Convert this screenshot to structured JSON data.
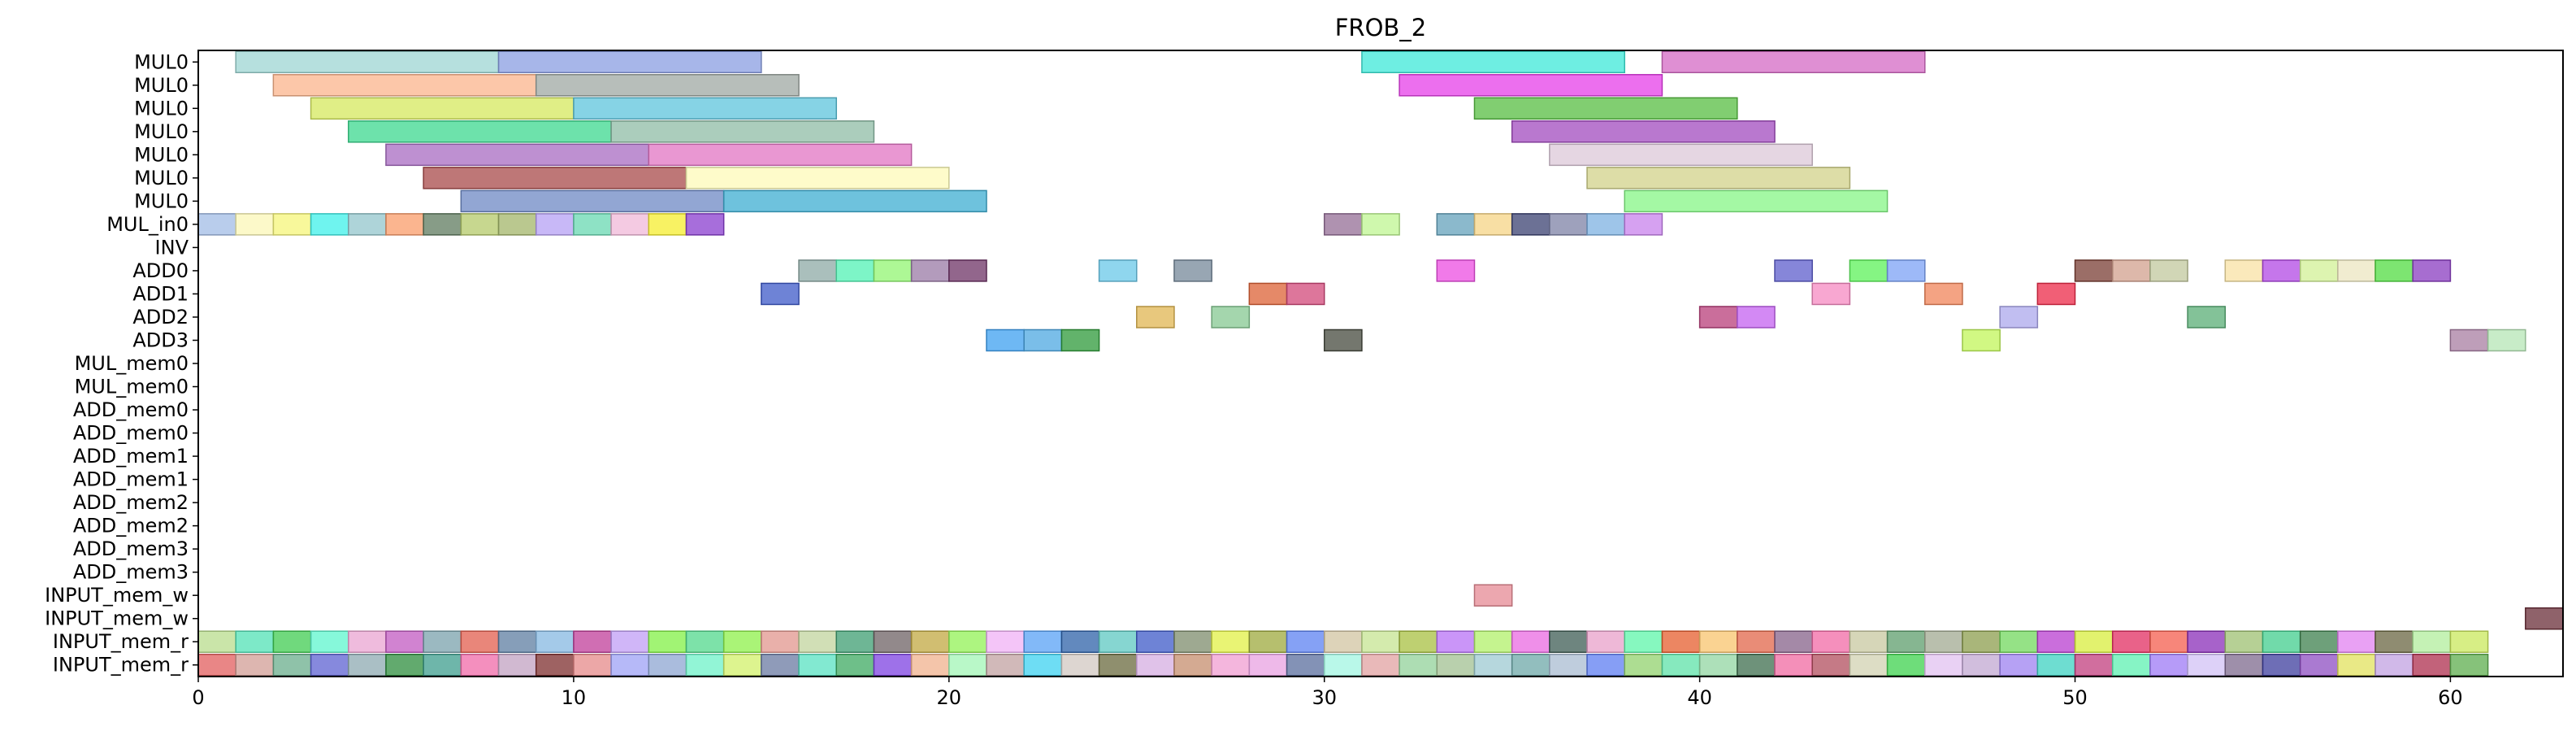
{
  "chart_data": {
    "type": "gantt",
    "title": "FROB_2",
    "xlabel": "",
    "ylabel": "",
    "xlim": [
      0,
      63
    ],
    "xticks": [
      0,
      10,
      20,
      30,
      40,
      50,
      60
    ],
    "grid": false,
    "rows": [
      "MUL0",
      "MUL0",
      "MUL0",
      "MUL0",
      "MUL0",
      "MUL0",
      "MUL0",
      "MUL_in0",
      "INV",
      "ADD0",
      "ADD1",
      "ADD2",
      "ADD3",
      "MUL_mem0",
      "MUL_mem0",
      "ADD_mem0",
      "ADD_mem0",
      "ADD_mem1",
      "ADD_mem1",
      "ADD_mem2",
      "ADD_mem2",
      "ADD_mem3",
      "ADD_mem3",
      "INPUT_mem_w",
      "INPUT_mem_w",
      "INPUT_mem_r",
      "INPUT_mem_r"
    ],
    "tasks": [
      {
        "row": 0,
        "start": 1,
        "end": 8,
        "color": "#9ed6d3"
      },
      {
        "row": 0,
        "start": 8,
        "end": 15,
        "color": "#8a9ee2"
      },
      {
        "row": 0,
        "start": 31,
        "end": 38,
        "color": "#3de8d8"
      },
      {
        "row": 0,
        "start": 39,
        "end": 46,
        "color": "#d46ac4"
      },
      {
        "row": 1,
        "start": 2,
        "end": 9,
        "color": "#fbb48c"
      },
      {
        "row": 1,
        "start": 9,
        "end": 16,
        "color": "#9fa8a3"
      },
      {
        "row": 1,
        "start": 32,
        "end": 39,
        "color": "#e63fe8"
      },
      {
        "row": 2,
        "start": 3,
        "end": 10,
        "color": "#d6e85e"
      },
      {
        "row": 2,
        "start": 10,
        "end": 17,
        "color": "#5ec4dc"
      },
      {
        "row": 2,
        "start": 34,
        "end": 41,
        "color": "#57be42"
      },
      {
        "row": 3,
        "start": 4,
        "end": 11,
        "color": "#3cd88f"
      },
      {
        "row": 3,
        "start": 11,
        "end": 18,
        "color": "#8fbca6"
      },
      {
        "row": 3,
        "start": 35,
        "end": 42,
        "color": "#a24bbf"
      },
      {
        "row": 4,
        "start": 5,
        "end": 12,
        "color": "#a86bc2"
      },
      {
        "row": 4,
        "start": 12,
        "end": 19,
        "color": "#e274c3"
      },
      {
        "row": 4,
        "start": 36,
        "end": 43,
        "color": "#dcc8d8"
      },
      {
        "row": 5,
        "start": 6,
        "end": 13,
        "color": "#a84a4a"
      },
      {
        "row": 5,
        "start": 13,
        "end": 20,
        "color": "#fdfab8"
      },
      {
        "row": 5,
        "start": 37,
        "end": 44,
        "color": "#d2d28a"
      },
      {
        "row": 6,
        "start": 7,
        "end": 14,
        "color": "#6d88c4"
      },
      {
        "row": 6,
        "start": 14,
        "end": 21,
        "color": "#3eaed2"
      },
      {
        "row": 6,
        "start": 38,
        "end": 45,
        "color": "#86f686"
      },
      {
        "row": 7,
        "start": 0,
        "end": 1,
        "color": "#a2bce6"
      },
      {
        "row": 7,
        "start": 1,
        "end": 2,
        "color": "#fbf7b7"
      },
      {
        "row": 7,
        "start": 2,
        "end": 3,
        "color": "#f6f67a"
      },
      {
        "row": 7,
        "start": 3,
        "end": 4,
        "color": "#3ff0ea"
      },
      {
        "row": 7,
        "start": 4,
        "end": 5,
        "color": "#93c6cc"
      },
      {
        "row": 7,
        "start": 5,
        "end": 6,
        "color": "#fa9c6a"
      },
      {
        "row": 7,
        "start": 6,
        "end": 7,
        "color": "#5f7b5f"
      },
      {
        "row": 7,
        "start": 7,
        "end": 8,
        "color": "#b4c96a"
      },
      {
        "row": 7,
        "start": 8,
        "end": 9,
        "color": "#a3b56a"
      },
      {
        "row": 7,
        "start": 9,
        "end": 10,
        "color": "#b6a0f4"
      },
      {
        "row": 7,
        "start": 10,
        "end": 11,
        "color": "#68d8b2"
      },
      {
        "row": 7,
        "start": 11,
        "end": 12,
        "color": "#f0b8d8"
      },
      {
        "row": 7,
        "start": 12,
        "end": 13,
        "color": "#f6ee2f"
      },
      {
        "row": 7,
        "start": 13,
        "end": 14,
        "color": "#8a3ecf"
      },
      {
        "row": 7,
        "start": 30,
        "end": 31,
        "color": "#946e96"
      },
      {
        "row": 7,
        "start": 31,
        "end": 32,
        "color": "#bff692"
      },
      {
        "row": 7,
        "start": 33,
        "end": 34,
        "color": "#64a2bb"
      },
      {
        "row": 7,
        "start": 34,
        "end": 35,
        "color": "#f6d486"
      },
      {
        "row": 7,
        "start": 35,
        "end": 36,
        "color": "#3b4272"
      },
      {
        "row": 7,
        "start": 36,
        "end": 37,
        "color": "#7e82a6"
      },
      {
        "row": 7,
        "start": 37,
        "end": 38,
        "color": "#7eb2e2"
      },
      {
        "row": 7,
        "start": 38,
        "end": 39,
        "color": "#c882ec"
      },
      {
        "row": 9,
        "start": 16,
        "end": 17,
        "color": "#8eaaa6"
      },
      {
        "row": 9,
        "start": 17,
        "end": 18,
        "color": "#52f2b4"
      },
      {
        "row": 9,
        "start": 18,
        "end": 19,
        "color": "#92f672"
      },
      {
        "row": 9,
        "start": 19,
        "end": 20,
        "color": "#9a7aa6"
      },
      {
        "row": 9,
        "start": 20,
        "end": 21,
        "color": "#6e3366"
      },
      {
        "row": 9,
        "start": 24,
        "end": 25,
        "color": "#6ac8e8"
      },
      {
        "row": 9,
        "start": 26,
        "end": 27,
        "color": "#75889a"
      },
      {
        "row": 9,
        "start": 33,
        "end": 34,
        "color": "#ec4ee2"
      },
      {
        "row": 9,
        "start": 42,
        "end": 43,
        "color": "#5e5ecc"
      },
      {
        "row": 9,
        "start": 44,
        "end": 45,
        "color": "#5cf25a"
      },
      {
        "row": 9,
        "start": 45,
        "end": 46,
        "color": "#7ca2f6"
      },
      {
        "row": 9,
        "start": 50,
        "end": 51,
        "color": "#7a3e34"
      },
      {
        "row": 9,
        "start": 51,
        "end": 52,
        "color": "#d2a08e"
      },
      {
        "row": 9,
        "start": 52,
        "end": 53,
        "color": "#c2c89e"
      },
      {
        "row": 9,
        "start": 54,
        "end": 55,
        "color": "#f8e2a4"
      },
      {
        "row": 9,
        "start": 55,
        "end": 56,
        "color": "#b248e4"
      },
      {
        "row": 9,
        "start": 56,
        "end": 57,
        "color": "#d2f096"
      },
      {
        "row": 9,
        "start": 57,
        "end": 58,
        "color": "#ece6c0"
      },
      {
        "row": 9,
        "start": 58,
        "end": 59,
        "color": "#52dc42"
      },
      {
        "row": 9,
        "start": 59,
        "end": 60,
        "color": "#8a3cc0"
      },
      {
        "row": 10,
        "start": 15,
        "end": 16,
        "color": "#3e5ac8"
      },
      {
        "row": 10,
        "start": 28,
        "end": 29,
        "color": "#dc6236"
      },
      {
        "row": 10,
        "start": 29,
        "end": 30,
        "color": "#d2487a"
      },
      {
        "row": 10,
        "start": 43,
        "end": 44,
        "color": "#f68ac2"
      },
      {
        "row": 10,
        "start": 46,
        "end": 47,
        "color": "#f0845a"
      },
      {
        "row": 10,
        "start": 49,
        "end": 50,
        "color": "#ec2a48"
      },
      {
        "row": 11,
        "start": 25,
        "end": 26,
        "color": "#e0b652"
      },
      {
        "row": 11,
        "start": 27,
        "end": 28,
        "color": "#86c892"
      },
      {
        "row": 11,
        "start": 40,
        "end": 41,
        "color": "#b83e7a"
      },
      {
        "row": 11,
        "start": 41,
        "end": 42,
        "color": "#c462f0"
      },
      {
        "row": 11,
        "start": 48,
        "end": 49,
        "color": "#aca8ec"
      },
      {
        "row": 11,
        "start": 53,
        "end": 54,
        "color": "#5aae76"
      },
      {
        "row": 12,
        "start": 21,
        "end": 22,
        "color": "#3ea0f0"
      },
      {
        "row": 12,
        "start": 22,
        "end": 23,
        "color": "#4ea8e2"
      },
      {
        "row": 12,
        "start": 23,
        "end": 24,
        "color": "#2e9a3a"
      },
      {
        "row": 12,
        "start": 30,
        "end": 31,
        "color": "#464a3e"
      },
      {
        "row": 12,
        "start": 47,
        "end": 48,
        "color": "#c2f65a"
      },
      {
        "row": 12,
        "start": 60,
        "end": 61,
        "color": "#a87ea2"
      },
      {
        "row": 12,
        "start": 61,
        "end": 62,
        "color": "#b6e6b6"
      },
      {
        "row": 23,
        "start": 34,
        "end": 35,
        "color": "#e68a94"
      },
      {
        "row": 24,
        "start": 62,
        "end": 63,
        "color": "#6a2e38"
      }
    ],
    "bottom_rows": [
      {
        "row": 25,
        "colors": [
          "#b8dc8c",
          "#52e2b6",
          "#40cc52",
          "#5ef6ce",
          "#eaa4d2",
          "#c25ac2",
          "#7aa2ac",
          "#e25e4e",
          "#5e7ea2",
          "#86b8e2",
          "#c03e9a",
          "#c09ef6",
          "#82f046",
          "#52d88c",
          "#8ef04a",
          "#e2968e",
          "#c2d49e",
          "#3e9e72",
          "#6e6264",
          "#c2a842",
          "#92f256",
          "#f0b2f6",
          "#58a2f6",
          "#2e62a8",
          "#5ec8c2",
          "#3e5ac8",
          "#7e8c6c",
          "#e2f046",
          "#9eaa3e",
          "#5c82f2",
          "#d2c4a2",
          "#c6e492",
          "#a8c042",
          "#b872f6",
          "#b2f06a",
          "#ea6ae2",
          "#3e5c54",
          "#e8a0ca",
          "#5ef6aa",
          "#e65e2e",
          "#f8c46e",
          "#e2664a",
          "#86628a",
          "#f26aa6",
          "#c8c8a0",
          "#5e9e6c",
          "#a2aa92",
          "#8c9e4e",
          "#72d85e",
          "#b83ed0",
          "#d8ee3e",
          "#e22e62",
          "#f45e4e",
          "#8a2eb8",
          "#9ec072",
          "#42ce8e",
          "#3e804e",
          "#e282f0",
          "#6a6642",
          "#b2ee9c",
          "#cae85c"
        ]
      },
      {
        "row": 26,
        "colors": [
          "#e25e5e",
          "#d29e96",
          "#6aae8c",
          "#5e62d2",
          "#8eaab2",
          "#2e8e3e",
          "#3e9e8e",
          "#f06aa8",
          "#c2a2c2",
          "#7e2e2e",
          "#e68a8a",
          "#9ea2f6",
          "#8ea6d2",
          "#6ef2c8",
          "#d2f06a",
          "#6a7aa2",
          "#58e2c2",
          "#3eaa62",
          "#7e42e2",
          "#f0b28e",
          "#a2f6b6",
          "#c2a2a2",
          "#3ed2f0",
          "#d2c8c2",
          "#6a6a3e",
          "#d6aee2",
          "#c68e6e",
          "#f09ed2",
          "#e8a2e2",
          "#5a6e9e",
          "#a2f6e2",
          "#e2a2a2",
          "#92d29a",
          "#a2c092",
          "#9ecad2",
          "#6ea8a8",
          "#aabcd2",
          "#5e7ef2",
          "#92d26e",
          "#5ee2a8",
          "#92d6a2",
          "#3e6e4e",
          "#f06aa2",
          "#b24e5e",
          "#d2d2b2",
          "#3ed24e",
          "#e2c2f0",
          "#c2a8d2",
          "#9e82f0",
          "#3ed2c2",
          "#c23e7e",
          "#5ef0b2",
          "#9e7af6",
          "#d2c2f6",
          "#7e6a8e",
          "#3e3e9e",
          "#8e4ec2",
          "#e2e25e",
          "#c2a2e2",
          "#ae2e4e",
          "#5eae4e"
        ]
      }
    ]
  }
}
